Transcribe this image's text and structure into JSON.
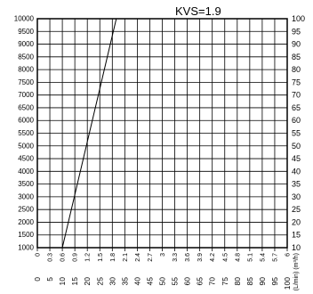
{
  "chart_data": {
    "type": "line",
    "title": "KVS=1.9",
    "left_axis": {
      "ticks": [
        1000,
        1500,
        2000,
        2500,
        3000,
        3500,
        4000,
        4500,
        5000,
        5500,
        6000,
        6500,
        7000,
        7500,
        8000,
        8500,
        9000,
        9500,
        10000
      ],
      "labels": [
        "1000",
        "1500",
        "2000",
        "2500",
        "3000",
        "3500",
        "4000",
        "4500",
        "5000",
        "5500",
        "6000",
        "6500",
        "7000",
        "7500",
        "8000",
        "8500",
        "9000",
        "9500",
        "10000"
      ],
      "range": [
        1000,
        10000
      ]
    },
    "right_axis": {
      "ticks": [
        10,
        15,
        20,
        25,
        30,
        35,
        40,
        45,
        50,
        55,
        60,
        65,
        70,
        75,
        80,
        85,
        90,
        95,
        100
      ],
      "labels": [
        "10",
        "15",
        "20",
        "25",
        "30",
        "35",
        "40",
        "45",
        "50",
        "55",
        "60",
        "65",
        "70",
        "75",
        "80",
        "85",
        "90",
        "95",
        "100"
      ],
      "range": [
        10,
        100
      ]
    },
    "x_axis_upper": {
      "labels": [
        "0",
        "0.3",
        "0.6",
        "0.9",
        "1.2",
        "1.5",
        "1.8",
        "2.1",
        "2.4",
        "2.7",
        "3",
        "3.3",
        "3.6",
        "3.9",
        "4.2",
        "4.5",
        "4.8",
        "5.1",
        "5.4",
        "5.7",
        "6"
      ],
      "range": [
        0,
        6
      ],
      "unit_label": "(L/min) (m³/h)"
    },
    "x_axis_lower": {
      "labels": [
        "0",
        "5",
        "10",
        "15",
        "20",
        "25",
        "30",
        "35",
        "40",
        "45",
        "50",
        "55",
        "60",
        "65",
        "70",
        "75",
        "80",
        "85",
        "90",
        "95",
        "100"
      ],
      "range": [
        0,
        100
      ]
    },
    "grid": true,
    "series": [
      {
        "x": [
          10,
          31.6
        ],
        "y": [
          1000,
          10000
        ],
        "color": "#000000"
      }
    ]
  }
}
